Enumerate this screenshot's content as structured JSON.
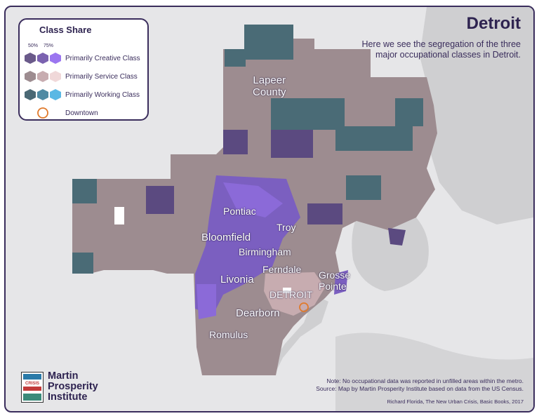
{
  "title": "Detroit",
  "subtitle": "Here we see the segregation of the three major occupational classes in Detroit.",
  "legend": {
    "title": "Class Share",
    "pct_low": "50%",
    "pct_high": "75%",
    "items": [
      {
        "label": "Primarily Creative Class",
        "colors": [
          "#6a5a8a",
          "#7b62b0",
          "#9b76f0"
        ]
      },
      {
        "label": "Primarily Service Class",
        "colors": [
          "#9d8c90",
          "#c7acb0",
          "#f0d8d9"
        ]
      },
      {
        "label": "Primarily Working Class",
        "colors": [
          "#4a6874",
          "#4f8aa3",
          "#5ab8e4"
        ]
      },
      {
        "label": "Downtown",
        "colors": [
          "#e07a2c"
        ]
      }
    ]
  },
  "places": [
    {
      "name": "Lapeer\nCounty"
    },
    {
      "name": "Pontiac"
    },
    {
      "name": "Troy"
    },
    {
      "name": "Bloomfield"
    },
    {
      "name": "Birmingham"
    },
    {
      "name": "Ferndale"
    },
    {
      "name": "Grosse\nPointe"
    },
    {
      "name": "Livonia"
    },
    {
      "name": "DETROIT"
    },
    {
      "name": "Dearborn"
    },
    {
      "name": "Romulus"
    }
  ],
  "logo": {
    "line1": "Martin",
    "line2": "Prosperity",
    "line3": "Institute",
    "badge_text": "CRISIS"
  },
  "note": "Note: No occupational data was reported in unfilled areas within the metro.",
  "source": "Source: Map by Martin Prosperity Institute based on data from the US Census.",
  "credit": "Richard Florida, The New Urban Crisis, Basic Books, 2017",
  "colors": {
    "land": "#e6e6e8",
    "water": "#cfcfd1",
    "service": "#9d8c90",
    "creative_dark": "#5b4a80",
    "creative_light": "#8b6ad8",
    "working": "#4a6b76",
    "downtown": "#e07a2c",
    "frame": "#3a2d5c"
  }
}
